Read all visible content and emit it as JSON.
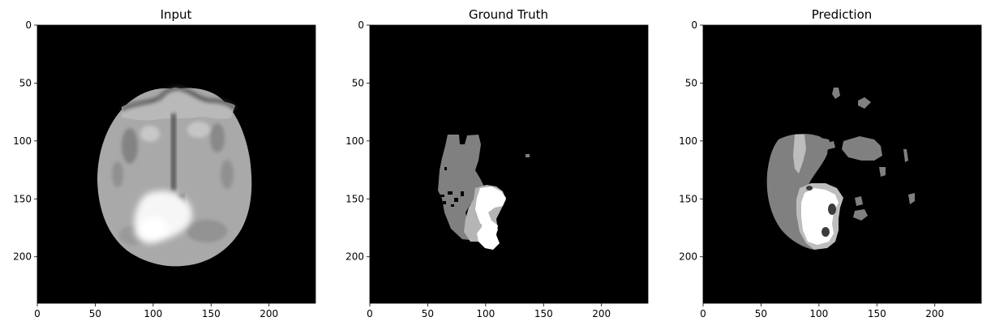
{
  "panels": [
    {
      "title": "Input",
      "x_ticks": [
        "0",
        "50",
        "100",
        "150",
        "200"
      ],
      "y_ticks": [
        "0",
        "50",
        "100",
        "150",
        "200"
      ]
    },
    {
      "title": "Ground Truth",
      "x_ticks": [
        "0",
        "50",
        "100",
        "150",
        "200"
      ],
      "y_ticks": [
        "0",
        "50",
        "100",
        "150",
        "200"
      ]
    },
    {
      "title": "Prediction",
      "x_ticks": [
        "0",
        "50",
        "100",
        "150",
        "200"
      ],
      "y_ticks": [
        "0",
        "50",
        "100",
        "150",
        "200"
      ]
    }
  ],
  "colors": {
    "background": "#000000",
    "label_gray": "#808080",
    "label_light": "#b8b8b8",
    "label_white": "#ffffff"
  }
}
